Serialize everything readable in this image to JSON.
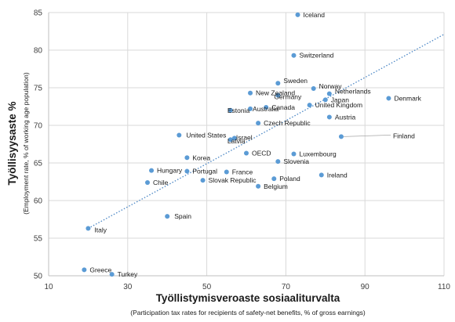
{
  "chart_data": {
    "type": "scatter",
    "xlabel": "Työllistymisveroaste sosiaaliturvalta",
    "xlabel_sub": "(Participation tax rates for recipients of safety-net benefits, % of gross earnings)",
    "ylabel": "Työllisyysaste %",
    "ylabel_sub": "(Employment rate, % of working age population)",
    "xlim": [
      10,
      110
    ],
    "ylim": [
      50,
      85
    ],
    "xticks": [
      10,
      30,
      50,
      70,
      90,
      110
    ],
    "yticks": [
      50,
      55,
      60,
      65,
      70,
      75,
      80,
      85
    ],
    "grid": true,
    "colors": {
      "point": "#5b9bd5",
      "trend": "#4a86c5",
      "grid": "#d9d9d9",
      "axis": "#bfbfbf",
      "connector": "#a6a6a6"
    },
    "trendline": {
      "x": [
        20,
        110
      ],
      "y": [
        56.3,
        82.1
      ]
    },
    "points": [
      {
        "name": "Iceland",
        "x": 73,
        "y": 84.7
      },
      {
        "name": "Switzerland",
        "x": 72,
        "y": 79.3
      },
      {
        "name": "Sweden",
        "x": 68,
        "y": 75.6
      },
      {
        "name": "Norway",
        "x": 77,
        "y": 74.9
      },
      {
        "name": "New Zealand",
        "x": 61,
        "y": 74.3
      },
      {
        "name": "Netherlands",
        "x": 81,
        "y": 74.2
      },
      {
        "name": "Germany",
        "x": 68,
        "y": 74.0
      },
      {
        "name": "Japan",
        "x": 80,
        "y": 73.4
      },
      {
        "name": "Denmark",
        "x": 96,
        "y": 73.6
      },
      {
        "name": "United Kingdom",
        "x": 76,
        "y": 72.7
      },
      {
        "name": "Canada",
        "x": 65,
        "y": 72.4
      },
      {
        "name": "Australia",
        "x": 61,
        "y": 72.2
      },
      {
        "name": "Estonia",
        "x": 56,
        "y": 72.0
      },
      {
        "name": "Austria",
        "x": 81,
        "y": 71.1
      },
      {
        "name": "Czech Republic",
        "x": 63,
        "y": 70.3
      },
      {
        "name": "United States",
        "x": 43,
        "y": 68.7
      },
      {
        "name": "Israel",
        "x": 57,
        "y": 68.3
      },
      {
        "name": "Latvia",
        "x": 56,
        "y": 68.1
      },
      {
        "name": "Finland",
        "x": 84,
        "y": 68.5
      },
      {
        "name": "OECD",
        "x": 60,
        "y": 66.3
      },
      {
        "name": "Luxembourg",
        "x": 72,
        "y": 66.2
      },
      {
        "name": "Korea",
        "x": 45,
        "y": 65.7
      },
      {
        "name": "Slovenia",
        "x": 68,
        "y": 65.2
      },
      {
        "name": "Hungary",
        "x": 36,
        "y": 64.0
      },
      {
        "name": "Portugal",
        "x": 45,
        "y": 63.9
      },
      {
        "name": "France",
        "x": 55,
        "y": 63.8
      },
      {
        "name": "Ireland",
        "x": 79,
        "y": 63.4
      },
      {
        "name": "Poland",
        "x": 67,
        "y": 62.9
      },
      {
        "name": "Slovak Republic",
        "x": 49,
        "y": 62.7
      },
      {
        "name": "Chile",
        "x": 35,
        "y": 62.4
      },
      {
        "name": "Belgium",
        "x": 63,
        "y": 61.9
      },
      {
        "name": "Spain",
        "x": 40,
        "y": 57.9
      },
      {
        "name": "Italy",
        "x": 20,
        "y": 56.3
      },
      {
        "name": "Greece",
        "x": 19,
        "y": 50.8
      },
      {
        "name": "Turkey",
        "x": 26,
        "y": 50.2
      }
    ]
  }
}
